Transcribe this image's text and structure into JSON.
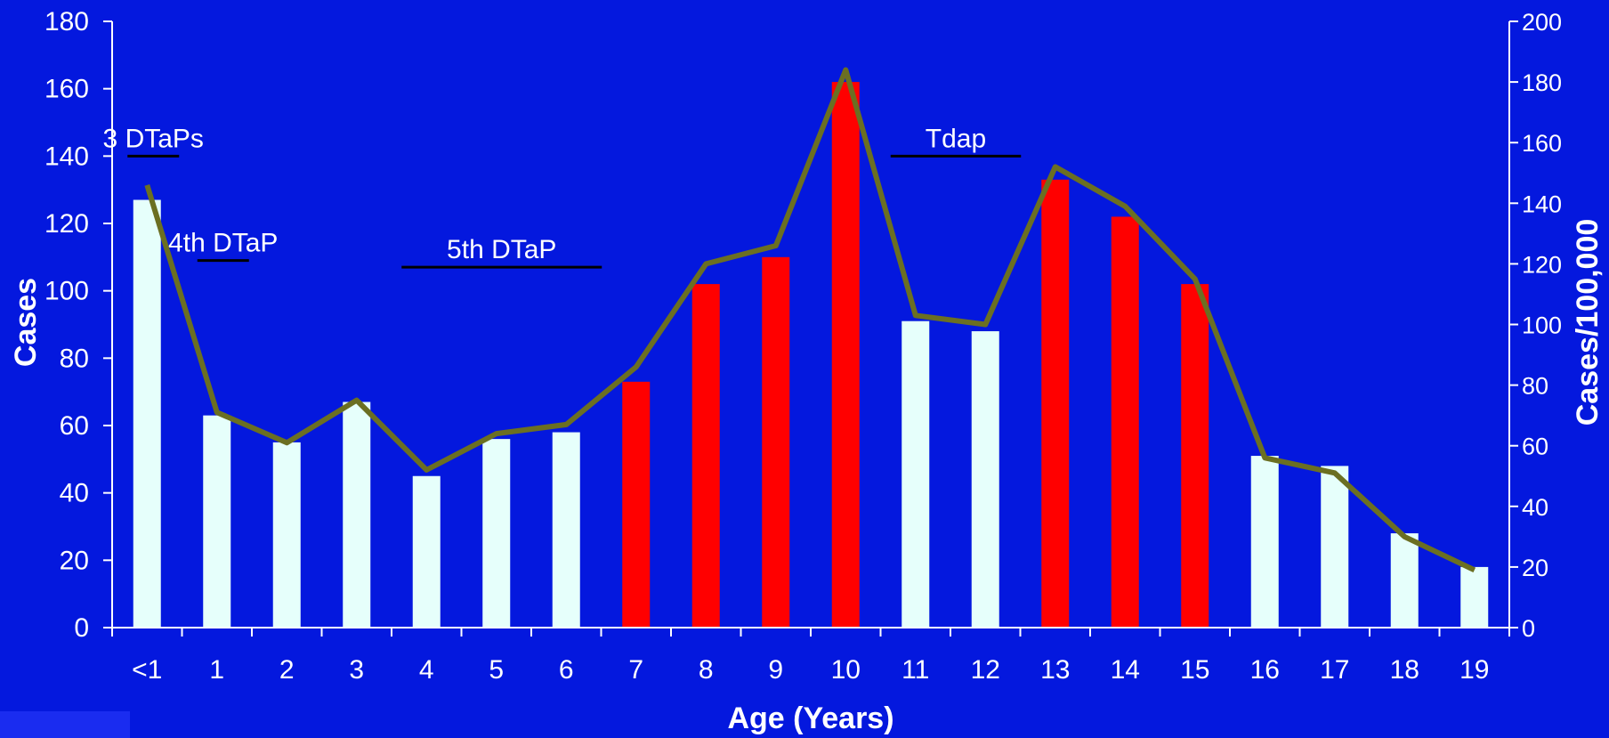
{
  "colors": {
    "background": "#0418de",
    "bar_default": "#e6fffb",
    "bar_highlight": "#ff0000",
    "line": "#6b6f22",
    "axis": "#ffffff"
  },
  "chart_data": {
    "type": "bar",
    "categories": [
      "<1",
      "1",
      "2",
      "3",
      "4",
      "5",
      "6",
      "7",
      "8",
      "9",
      "10",
      "11",
      "12",
      "13",
      "14",
      "15",
      "16",
      "17",
      "18",
      "19"
    ],
    "series": [
      {
        "axis": "left",
        "type": "bar",
        "values": [
          127,
          63,
          55,
          67,
          45,
          56,
          58,
          73,
          102,
          110,
          162,
          91,
          88,
          133,
          122,
          102,
          51,
          48,
          28,
          18
        ],
        "highlighted_categories": [
          "7",
          "8",
          "9",
          "10",
          "13",
          "14",
          "15"
        ]
      },
      {
        "axis": "right",
        "type": "line",
        "values": [
          146,
          71,
          61,
          75,
          52,
          64,
          67,
          86,
          120,
          126,
          184,
          103,
          100,
          152,
          139,
          115,
          56,
          51,
          30,
          19
        ]
      }
    ],
    "xlabel": "Age (Years)",
    "ylabel": "Cases",
    "ylabel_right": "Cases/100,000",
    "ylim": [
      0,
      180
    ],
    "ylim_right": [
      0,
      200
    ],
    "yticks": [
      0,
      20,
      40,
      60,
      80,
      100,
      120,
      140,
      160,
      180
    ],
    "yticks_right": [
      0,
      20,
      40,
      60,
      80,
      100,
      120,
      140,
      160,
      180,
      200
    ],
    "grid": false,
    "annotations": [
      {
        "text": "3 DTaPs",
        "x_from": "<1",
        "x_to": "<1",
        "y": 140
      },
      {
        "text": "4th DTaP",
        "x_from": "1",
        "x_to": "1",
        "y": 109
      },
      {
        "text": "5th DTaP",
        "x_from": "4",
        "x_to": "6",
        "y": 107
      },
      {
        "text": "Tdap",
        "x_from": "11",
        "x_to": "12",
        "y": 140
      }
    ]
  }
}
